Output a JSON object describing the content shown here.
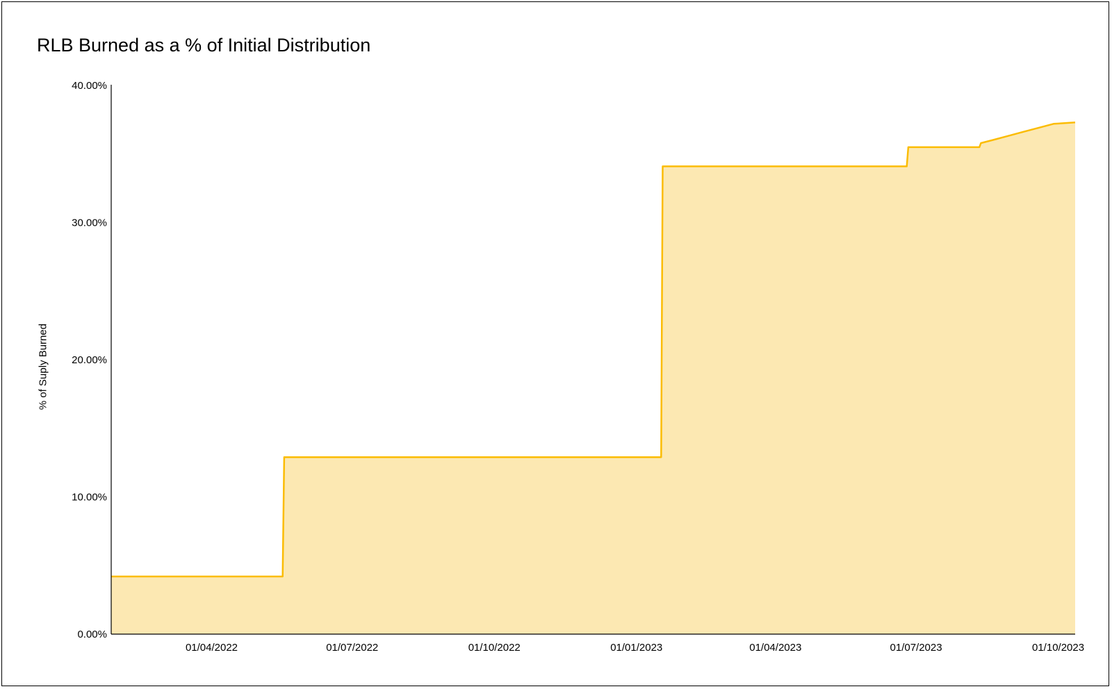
{
  "chart_data": {
    "type": "area",
    "title": "RLB Burned as a % of Initial Distribution",
    "xlabel": "",
    "ylabel": "% of Suply Burned",
    "ylim": [
      0,
      40
    ],
    "y_ticks": [
      {
        "value": 0,
        "label": "0.00%"
      },
      {
        "value": 10,
        "label": "10.00%"
      },
      {
        "value": 20,
        "label": "20.00%"
      },
      {
        "value": 30,
        "label": "30.00%"
      },
      {
        "value": 40,
        "label": "40.00%"
      }
    ],
    "x_domain_days": [
      0,
      624
    ],
    "x_ticks": [
      {
        "day": 65,
        "label": "01/04/2022"
      },
      {
        "day": 156,
        "label": "01/07/2022"
      },
      {
        "day": 248,
        "label": "01/10/2022"
      },
      {
        "day": 340,
        "label": "01/01/2023"
      },
      {
        "day": 430,
        "label": "01/04/2023"
      },
      {
        "day": 521,
        "label": "01/07/2023"
      },
      {
        "day": 613,
        "label": "01/10/2023"
      }
    ],
    "x_unit": "days since 25/01/2022",
    "series": [
      {
        "name": "% of Suply Burned",
        "color": "#FBBC04",
        "fill": "#FCE8B2",
        "points": [
          [
            0,
            4.2
          ],
          [
            111,
            4.2
          ],
          [
            112,
            12.9
          ],
          [
            356,
            12.9
          ],
          [
            357,
            34.1
          ],
          [
            515,
            34.1
          ],
          [
            516,
            35.5
          ],
          [
            562,
            35.5
          ],
          [
            563,
            35.8
          ],
          [
            570,
            36.0
          ],
          [
            580,
            36.3
          ],
          [
            590,
            36.6
          ],
          [
            600,
            36.9
          ],
          [
            610,
            37.2
          ],
          [
            624,
            37.3
          ]
        ]
      }
    ],
    "grid": false,
    "legend": "none"
  }
}
